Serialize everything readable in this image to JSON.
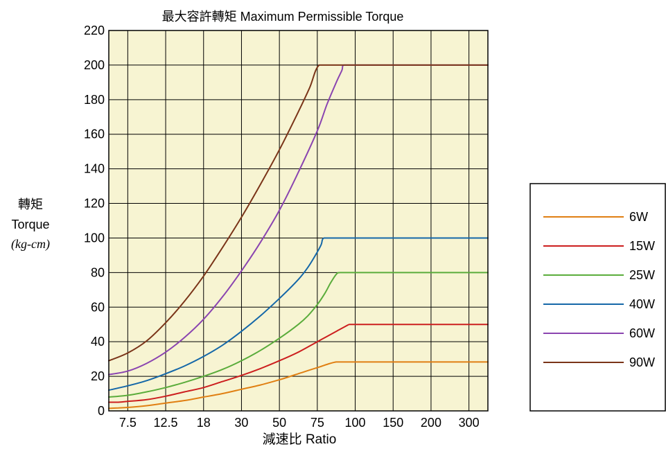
{
  "chart_data": {
    "type": "line",
    "title": "最大容許轉矩 Maximum Permissible Torque",
    "xlabel": "減速比 Ratio",
    "ylabel": [
      "轉矩",
      "Torque",
      "(kg-cm)"
    ],
    "x_categories": [
      "7.5",
      "12.5",
      "18",
      "30",
      "50",
      "75",
      "100",
      "150",
      "200",
      "300"
    ],
    "ylim": [
      0,
      220
    ],
    "yticks": [
      0,
      20,
      40,
      60,
      80,
      100,
      120,
      140,
      160,
      180,
      200,
      220
    ],
    "grid": true,
    "background": "#f7f4d2",
    "legend_position": "right",
    "series": [
      {
        "name": "6W",
        "color": "#e07f12",
        "points": [
          [
            0,
            1.5
          ],
          [
            0.5,
            1.7
          ],
          [
            1,
            2
          ],
          [
            2,
            3
          ],
          [
            3,
            4.5
          ],
          [
            4,
            6
          ],
          [
            5,
            8
          ],
          [
            6,
            10
          ],
          [
            7,
            12.5
          ],
          [
            8,
            15
          ],
          [
            9,
            18
          ],
          [
            10,
            21.5
          ],
          [
            11,
            25
          ],
          [
            12,
            28.3
          ],
          [
            13,
            28.3
          ],
          [
            14,
            28.3
          ],
          [
            15,
            28.3
          ],
          [
            16,
            28.3
          ],
          [
            17,
            28.3
          ],
          [
            18,
            28.3
          ],
          [
            19,
            28.3
          ],
          [
            20,
            28.3
          ]
        ]
      },
      {
        "name": "15W",
        "color": "#cc1e1e",
        "points": [
          [
            0,
            5
          ],
          [
            0.5,
            5
          ],
          [
            1,
            5.5
          ],
          [
            2,
            6.5
          ],
          [
            3,
            8.5
          ],
          [
            4,
            11
          ],
          [
            5,
            13.5
          ],
          [
            6,
            17
          ],
          [
            7,
            20.5
          ],
          [
            8,
            24.5
          ],
          [
            9,
            29
          ],
          [
            10,
            34
          ],
          [
            11,
            40
          ],
          [
            11.5,
            43
          ],
          [
            12,
            46
          ],
          [
            12.5,
            49
          ],
          [
            12.7,
            50
          ],
          [
            13,
            50
          ],
          [
            14,
            50
          ],
          [
            15,
            50
          ],
          [
            16,
            50
          ],
          [
            17,
            50
          ],
          [
            18,
            50
          ],
          [
            19,
            50
          ],
          [
            20,
            50
          ]
        ]
      },
      {
        "name": "25W",
        "color": "#5aac3b",
        "points": [
          [
            0,
            8
          ],
          [
            1,
            9
          ],
          [
            2,
            11
          ],
          [
            3,
            13.5
          ],
          [
            4,
            16.5
          ],
          [
            5,
            20
          ],
          [
            6,
            24
          ],
          [
            7,
            29
          ],
          [
            8,
            35
          ],
          [
            9,
            42
          ],
          [
            10,
            50
          ],
          [
            10.5,
            55
          ],
          [
            11,
            61.5
          ],
          [
            11.4,
            68
          ],
          [
            11.7,
            74
          ],
          [
            12,
            79
          ],
          [
            12.2,
            80
          ],
          [
            13,
            80
          ],
          [
            14,
            80
          ],
          [
            15,
            80
          ],
          [
            16,
            80
          ],
          [
            17,
            80
          ],
          [
            18,
            80
          ],
          [
            19,
            80
          ],
          [
            20,
            80
          ]
        ]
      },
      {
        "name": "40W",
        "color": "#1467a8",
        "points": [
          [
            0,
            12
          ],
          [
            1,
            14.5
          ],
          [
            2,
            17.5
          ],
          [
            3,
            21.5
          ],
          [
            4,
            26
          ],
          [
            5,
            31.5
          ],
          [
            6,
            38
          ],
          [
            7,
            46
          ],
          [
            8,
            55
          ],
          [
            9,
            65
          ],
          [
            10,
            76
          ],
          [
            10.5,
            83
          ],
          [
            10.9,
            90
          ],
          [
            11.2,
            96
          ],
          [
            11.35,
            100
          ],
          [
            12,
            100
          ],
          [
            13,
            100
          ],
          [
            14,
            100
          ],
          [
            15,
            100
          ],
          [
            16,
            100
          ],
          [
            17,
            100
          ],
          [
            18,
            100
          ],
          [
            19,
            100
          ],
          [
            20,
            100
          ]
        ]
      },
      {
        "name": "60W",
        "color": "#8a44b0",
        "points": [
          [
            0,
            21
          ],
          [
            1,
            23
          ],
          [
            2,
            27.5
          ],
          [
            3,
            34
          ],
          [
            4,
            42.5
          ],
          [
            5,
            53
          ],
          [
            6,
            66
          ],
          [
            7,
            81
          ],
          [
            8,
            97.5
          ],
          [
            9,
            116
          ],
          [
            10,
            138
          ],
          [
            11,
            162
          ],
          [
            11.5,
            177
          ],
          [
            12,
            190
          ],
          [
            12.3,
            197
          ],
          [
            12.4,
            200
          ],
          [
            13,
            200
          ],
          [
            14,
            200
          ],
          [
            15,
            200
          ],
          [
            16,
            200
          ],
          [
            17,
            200
          ],
          [
            18,
            200
          ],
          [
            19,
            200
          ],
          [
            20,
            200
          ]
        ]
      },
      {
        "name": "90W",
        "color": "#7a3418",
        "points": [
          [
            0,
            29
          ],
          [
            1,
            33.5
          ],
          [
            2,
            40.5
          ],
          [
            3,
            51
          ],
          [
            4,
            63.5
          ],
          [
            5,
            78
          ],
          [
            6,
            94.5
          ],
          [
            7,
            112
          ],
          [
            8,
            131
          ],
          [
            9,
            151
          ],
          [
            10,
            173
          ],
          [
            10.6,
            187
          ],
          [
            11.1,
            200
          ],
          [
            12,
            200
          ],
          [
            13,
            200
          ],
          [
            14,
            200
          ],
          [
            15,
            200
          ],
          [
            16,
            200
          ],
          [
            17,
            200
          ],
          [
            18,
            200
          ],
          [
            19,
            200
          ],
          [
            20,
            200
          ]
        ]
      }
    ]
  }
}
